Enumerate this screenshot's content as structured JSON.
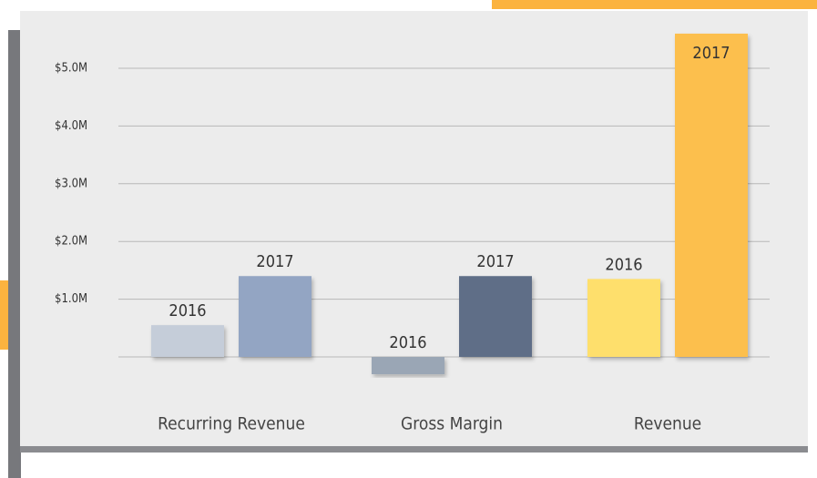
{
  "chart_data": {
    "type": "bar",
    "categories": [
      "Recurring Revenue",
      "Gross Margin",
      "Revenue"
    ],
    "series": [
      {
        "name": "2016",
        "values": [
          0.55,
          -0.3,
          1.35
        ],
        "colors": [
          "#c5cdd9",
          "#9aa6b5",
          "#fedf6c"
        ]
      },
      {
        "name": "2017",
        "values": [
          1.4,
          1.4,
          5.6
        ],
        "colors": [
          "#93a5c3",
          "#5f6e87",
          "#fcbf4e"
        ]
      }
    ],
    "ylim": [
      -0.5,
      5.7
    ],
    "yticks": [
      {
        "value": 1,
        "label": "$1.0M"
      },
      {
        "value": 2,
        "label": "$2.0M"
      },
      {
        "value": 3,
        "label": "$3.0M"
      },
      {
        "value": 4,
        "label": "$4.0M"
      },
      {
        "value": 5,
        "label": "$5.0M"
      }
    ],
    "grid": true
  }
}
